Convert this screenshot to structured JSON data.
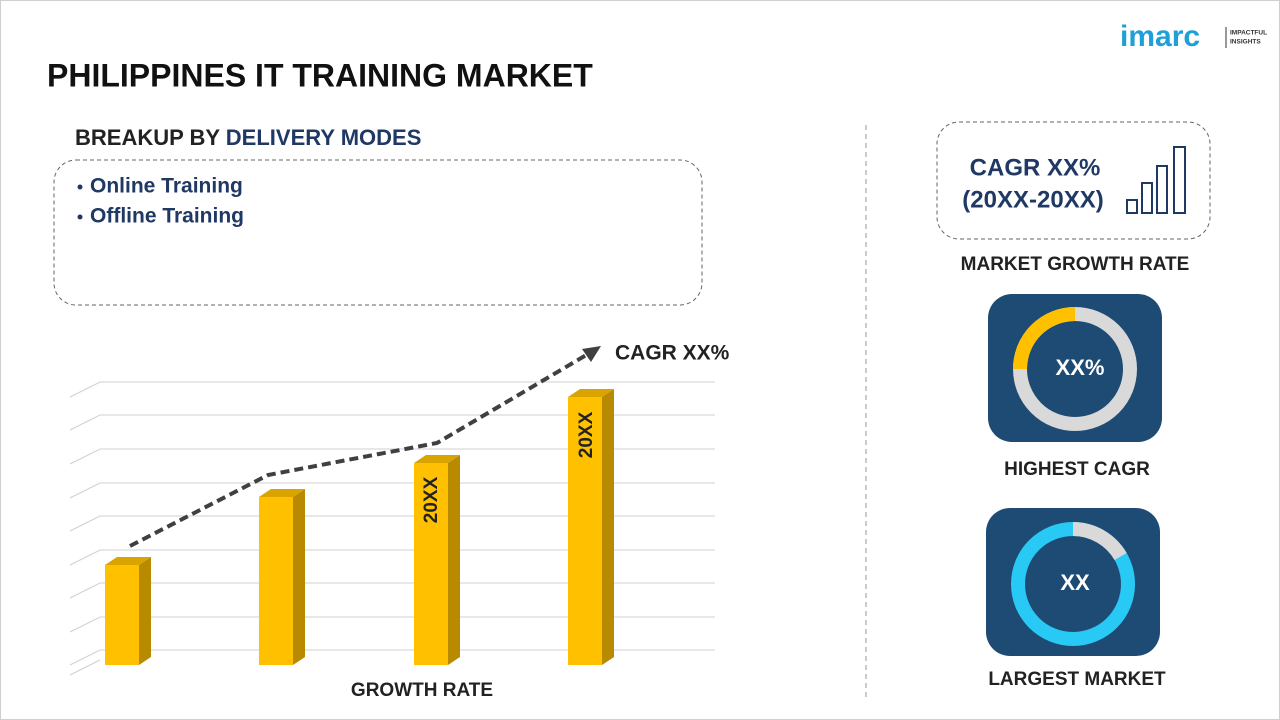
{
  "logo": {
    "brand": "imarc",
    "tagline_1": "IMPACTFUL",
    "tagline_2": "INSIGHTS"
  },
  "title": "PHILIPPINES IT TRAINING MARKET",
  "breakup": {
    "heading_prefix": "BREAKUP BY",
    "heading_highlight": "DELIVERY MODES",
    "items": [
      "Online Training",
      "Offline Training"
    ]
  },
  "growth_chart": {
    "bar_labels": [
      "20XX",
      "20XX"
    ],
    "cagr_label": "CAGR XX%",
    "axis_label": "GROWTH RATE"
  },
  "growth_rate": {
    "value": "CAGR XX%",
    "period": "(20XX-20XX)",
    "caption": "MARKET GROWTH RATE"
  },
  "highest_cagr": {
    "value": "XX%",
    "caption": "HIGHEST CAGR"
  },
  "largest_market": {
    "value": "XX",
    "caption": "LARGEST MARKET"
  }
}
